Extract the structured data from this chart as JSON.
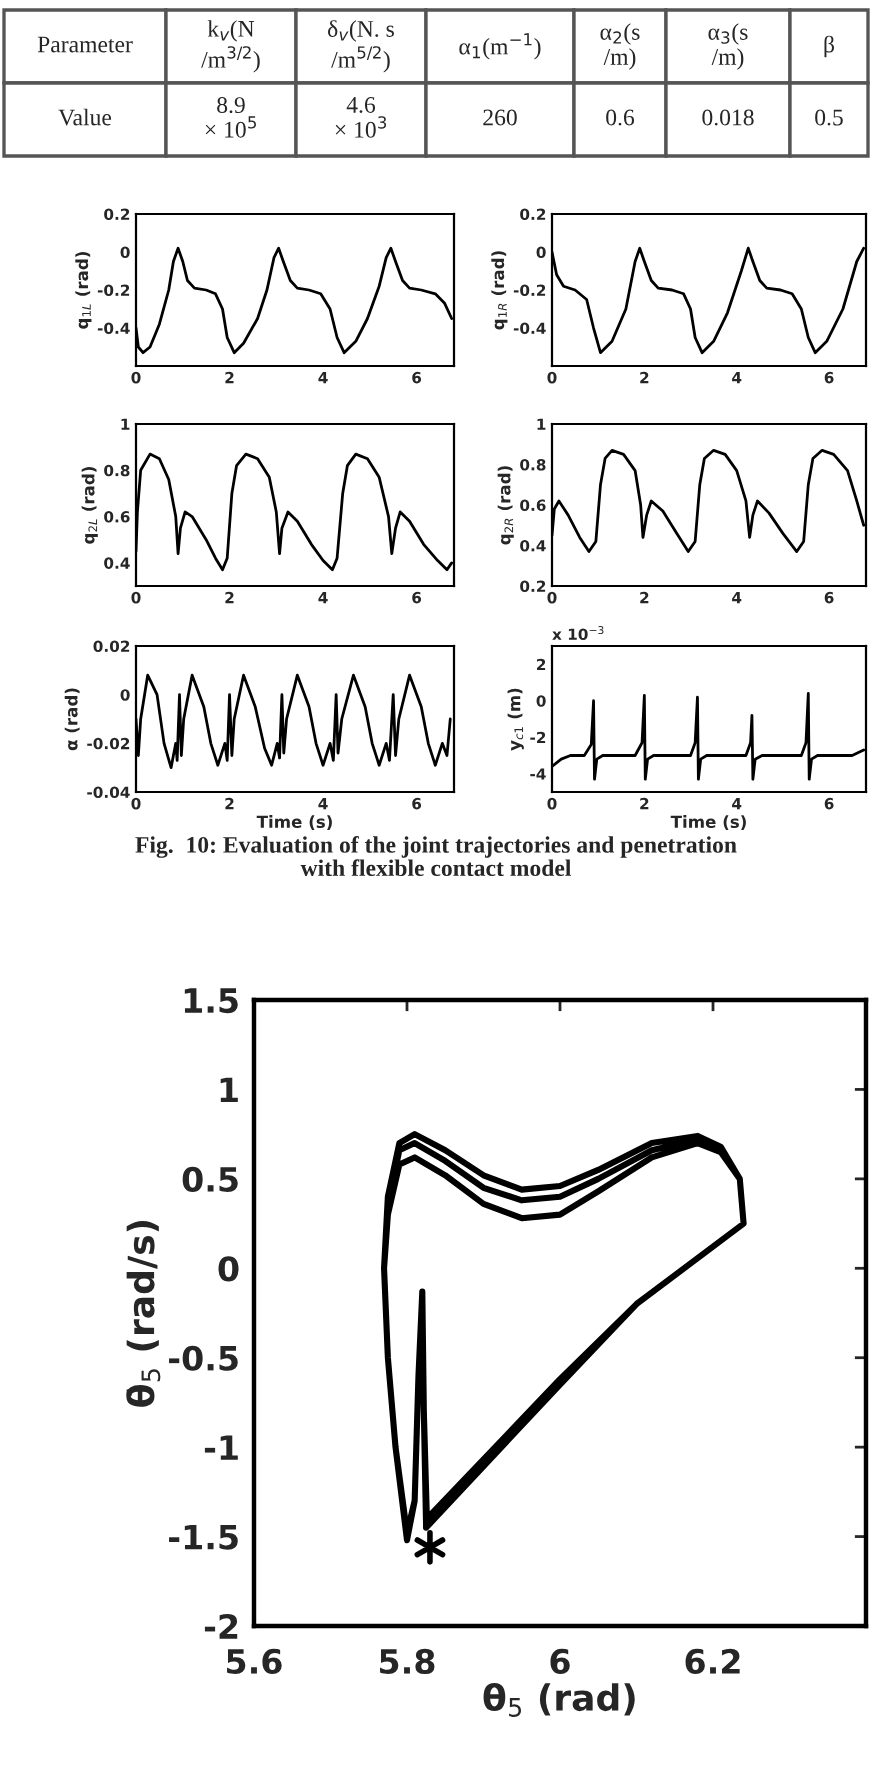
{
  "chart_data": [
    {
      "type": "other",
      "cell_labels": [
        [
          "Parameter",
          "k$_{v}$(N\n/m$^{3/2}$)",
          "δ$_{v}$(N. s\n/m$^{5/2}$)",
          "α$_{1}$(m$^{−1}$)",
          "α$_{2}$(s\n/m)",
          "α$_{3}$(s\n/m)",
          "β"
        ],
        [
          "Value",
          "8.9\n× 10$^{5}$",
          "4.6\n× 10$^{3}$",
          "260",
          "0.6",
          "0.018",
          "0.5"
        ]
      ]
    },
    {
      "type": "line",
      "ylabel": "q$_{1L}$ (rad)",
      "xlim": [
        0,
        6.8
      ],
      "ylim": [
        -0.6,
        0.2
      ],
      "xticks": [
        0,
        2,
        4,
        6
      ],
      "yticks": [
        -0.4,
        -0.2,
        0,
        0.2
      ],
      "series": [
        {
          "color": "#000000",
          "x": [
            0,
            0.05,
            0.15,
            0.3,
            0.5,
            0.7,
            0.8,
            0.9,
            1.0,
            1.1,
            1.25,
            1.5,
            1.7,
            1.85,
            1.95,
            2.1,
            2.3,
            2.6,
            2.8,
            2.95,
            3.05,
            3.15,
            3.3,
            3.45,
            3.7,
            3.95,
            4.15,
            4.3,
            4.45,
            4.7,
            4.95,
            5.2,
            5.35,
            5.45,
            5.55,
            5.7,
            5.85,
            6.1,
            6.4,
            6.6,
            6.75
          ],
          "values": [
            -0.4,
            -0.5,
            -0.53,
            -0.5,
            -0.38,
            -0.2,
            -0.05,
            0.02,
            -0.05,
            -0.15,
            -0.19,
            -0.2,
            -0.22,
            -0.3,
            -0.45,
            -0.53,
            -0.48,
            -0.35,
            -0.2,
            -0.03,
            0.02,
            -0.05,
            -0.15,
            -0.19,
            -0.2,
            -0.22,
            -0.3,
            -0.45,
            -0.53,
            -0.47,
            -0.35,
            -0.18,
            -0.03,
            0.02,
            -0.05,
            -0.15,
            -0.19,
            -0.2,
            -0.22,
            -0.27,
            -0.35
          ]
        }
      ]
    },
    {
      "type": "line",
      "ylabel": "q$_{1R}$ (rad)",
      "xlim": [
        0,
        6.8
      ],
      "ylim": [
        -0.6,
        0.2
      ],
      "xticks": [
        0,
        2,
        4,
        6
      ],
      "yticks": [
        -0.4,
        -0.2,
        0,
        0.2
      ],
      "series": [
        {
          "color": "#000000",
          "x": [
            0,
            0.1,
            0.25,
            0.5,
            0.75,
            0.9,
            1.05,
            1.3,
            1.6,
            1.8,
            1.9,
            2.0,
            2.15,
            2.3,
            2.6,
            2.85,
            3.0,
            3.1,
            3.25,
            3.5,
            3.8,
            4.1,
            4.25,
            4.35,
            4.5,
            4.65,
            4.95,
            5.2,
            5.4,
            5.55,
            5.7,
            5.95,
            6.3,
            6.6,
            6.75
          ],
          "values": [
            0,
            -0.12,
            -0.18,
            -0.2,
            -0.25,
            -0.4,
            -0.53,
            -0.47,
            -0.3,
            -0.05,
            0.02,
            -0.05,
            -0.15,
            -0.19,
            -0.2,
            -0.22,
            -0.3,
            -0.45,
            -0.53,
            -0.47,
            -0.32,
            -0.1,
            0.02,
            -0.05,
            -0.15,
            -0.19,
            -0.2,
            -0.22,
            -0.3,
            -0.45,
            -0.53,
            -0.47,
            -0.3,
            -0.05,
            0.02
          ]
        }
      ]
    },
    {
      "type": "line",
      "ylabel": "q$_{2L}$ (rad)",
      "xlim": [
        0,
        6.8
      ],
      "ylim": [
        0.3,
        1
      ],
      "xticks": [
        0,
        2,
        4,
        6
      ],
      "yticks": [
        0.4,
        0.6,
        0.8,
        1
      ],
      "series": [
        {
          "color": "#000000",
          "x": [
            0,
            0.03,
            0.1,
            0.3,
            0.5,
            0.7,
            0.85,
            0.9,
            0.95,
            1.05,
            1.2,
            1.5,
            1.7,
            1.85,
            1.95,
            2.05,
            2.15,
            2.35,
            2.6,
            2.85,
            3.0,
            3.07,
            3.12,
            3.25,
            3.45,
            3.75,
            4.0,
            4.2,
            4.3,
            4.42,
            4.52,
            4.7,
            4.95,
            5.2,
            5.4,
            5.47,
            5.55,
            5.65,
            5.85,
            6.15,
            6.45,
            6.65,
            6.75
          ],
          "values": [
            0.45,
            0.62,
            0.8,
            0.87,
            0.85,
            0.76,
            0.6,
            0.44,
            0.55,
            0.62,
            0.6,
            0.5,
            0.42,
            0.37,
            0.42,
            0.7,
            0.82,
            0.87,
            0.85,
            0.77,
            0.62,
            0.44,
            0.55,
            0.62,
            0.58,
            0.48,
            0.41,
            0.37,
            0.42,
            0.7,
            0.82,
            0.87,
            0.85,
            0.77,
            0.6,
            0.44,
            0.55,
            0.62,
            0.58,
            0.48,
            0.41,
            0.37,
            0.4
          ]
        }
      ]
    },
    {
      "type": "line",
      "ylabel": "q$_{2R}$ (rad)",
      "xlim": [
        0,
        6.8
      ],
      "ylim": [
        0.2,
        1
      ],
      "xticks": [
        0,
        2,
        4,
        6
      ],
      "yticks": [
        0.2,
        0.4,
        0.6,
        0.8,
        1
      ],
      "series": [
        {
          "color": "#000000",
          "x": [
            0,
            0.05,
            0.15,
            0.35,
            0.6,
            0.8,
            0.95,
            1.05,
            1.15,
            1.3,
            1.55,
            1.8,
            1.92,
            1.97,
            2.05,
            2.15,
            2.4,
            2.7,
            2.95,
            3.1,
            3.2,
            3.3,
            3.5,
            3.75,
            4.0,
            4.2,
            4.28,
            4.35,
            4.45,
            4.7,
            5.0,
            5.3,
            5.45,
            5.55,
            5.65,
            5.85,
            6.1,
            6.4,
            6.6,
            6.75
          ],
          "values": [
            0.45,
            0.58,
            0.62,
            0.55,
            0.44,
            0.37,
            0.42,
            0.7,
            0.83,
            0.87,
            0.85,
            0.77,
            0.6,
            0.44,
            0.55,
            0.62,
            0.57,
            0.46,
            0.37,
            0.42,
            0.7,
            0.83,
            0.87,
            0.85,
            0.77,
            0.62,
            0.44,
            0.55,
            0.62,
            0.56,
            0.46,
            0.37,
            0.42,
            0.7,
            0.83,
            0.87,
            0.85,
            0.77,
            0.62,
            0.5
          ]
        }
      ]
    },
    {
      "type": "line",
      "ylabel": "α (rad)",
      "xlabel": "Time (s)",
      "xlim": [
        0,
        6.8
      ],
      "ylim": [
        -0.04,
        0.02
      ],
      "xticks": [
        0,
        2,
        4,
        6
      ],
      "yticks": [
        -0.04,
        -0.02,
        0,
        0.02
      ],
      "series": [
        {
          "color": "#000000",
          "x": [
            0,
            0.05,
            0.1,
            0.25,
            0.45,
            0.6,
            0.75,
            0.85,
            0.88,
            0.93,
            0.97,
            1.02,
            1.2,
            1.45,
            1.6,
            1.75,
            1.9,
            1.95,
            2.0,
            2.05,
            2.1,
            2.3,
            2.55,
            2.75,
            2.9,
            3.02,
            3.07,
            3.12,
            3.16,
            3.22,
            3.45,
            3.7,
            3.85,
            4.0,
            4.15,
            4.22,
            4.28,
            4.32,
            4.4,
            4.65,
            4.9,
            5.05,
            5.2,
            5.35,
            5.42,
            5.5,
            5.55,
            5.62,
            5.85,
            6.1,
            6.25,
            6.4,
            6.55,
            6.65,
            6.72
          ],
          "values": [
            -0.01,
            -0.025,
            -0.01,
            0.008,
            0.0,
            -0.02,
            -0.03,
            -0.02,
            -0.027,
            0.0,
            -0.025,
            -0.01,
            0.008,
            -0.005,
            -0.02,
            -0.029,
            -0.02,
            -0.027,
            0.0,
            -0.025,
            -0.01,
            0.008,
            -0.005,
            -0.022,
            -0.029,
            -0.02,
            -0.026,
            0.0,
            -0.024,
            -0.01,
            0.008,
            -0.005,
            -0.02,
            -0.029,
            -0.02,
            -0.027,
            0.0,
            -0.024,
            -0.01,
            0.008,
            -0.005,
            -0.02,
            -0.029,
            -0.02,
            -0.027,
            0.0,
            -0.025,
            -0.01,
            0.008,
            -0.005,
            -0.02,
            -0.029,
            -0.02,
            -0.025,
            -0.01
          ]
        }
      ]
    },
    {
      "type": "line",
      "ylabel": "y$_{c1}$ (m)",
      "xlabel": "Time (s)",
      "xlim": [
        0,
        6.8
      ],
      "ylim": [
        -5,
        3
      ],
      "xticks": [
        0,
        2,
        4,
        6
      ],
      "yticks": [
        -4,
        -2,
        0,
        2
      ],
      "annotations": [
        "x 10$^{−3}$",
        "Fig.  10: Evaluation of the joint trajectories and penetration\nwith flexible contact model"
      ],
      "series": [
        {
          "color": "#000000",
          "x": [
            0,
            0.2,
            0.4,
            0.7,
            0.85,
            0.9,
            0.92,
            0.97,
            1.1,
            1.8,
            1.95,
            2.0,
            2.02,
            2.07,
            2.2,
            3.0,
            3.1,
            3.15,
            3.17,
            3.22,
            3.35,
            4.2,
            4.3,
            4.33,
            4.35,
            4.4,
            4.55,
            5.4,
            5.5,
            5.55,
            5.57,
            5.62,
            5.75,
            6.5,
            6.75
          ],
          "values": [
            -3.6,
            -3.2,
            -3.0,
            -3.0,
            -2.4,
            0.0,
            -4.3,
            -3.2,
            -3.0,
            -3.0,
            -2.3,
            0.3,
            -4.3,
            -3.2,
            -3.0,
            -3.0,
            -2.3,
            0.2,
            -4.3,
            -3.2,
            -3.0,
            -3.0,
            -2.3,
            -0.8,
            -4.3,
            -3.2,
            -3.0,
            -3.0,
            -2.3,
            0.4,
            -4.3,
            -3.2,
            -3.0,
            -3.0,
            -2.7
          ]
        }
      ]
    },
    {
      "type": "line",
      "xlabel": "θ$_{5}$ (rad)",
      "ylabel": "θ̇$_{5}$ (rad/s)",
      "xlim": [
        5.6,
        6.4
      ],
      "ylim": [
        -2,
        1.5
      ],
      "xticks": [
        5.6,
        5.8,
        6,
        6.2
      ],
      "yticks": [
        -2,
        -1.5,
        -1,
        -0.5,
        0,
        0.5,
        1,
        1.5
      ],
      "series": [
        {
          "color": "#000000",
          "x": [
            5.825,
            6.0,
            6.1,
            6.24,
            6.235,
            6.21,
            6.18,
            6.12,
            6.05,
            6.0,
            5.95,
            5.9,
            5.85,
            5.81,
            5.79,
            5.775,
            5.77,
            5.775,
            5.785,
            5.8,
            5.81,
            5.815,
            5.82,
            5.822,
            5.825,
            6.0,
            6.1,
            6.24,
            6.235,
            6.21,
            6.18,
            6.12,
            6.05,
            6.0,
            5.95,
            5.9,
            5.85,
            5.81,
            5.79,
            5.775,
            5.77,
            5.775,
            5.785,
            5.8,
            5.81,
            5.815,
            5.82,
            5.822,
            5.826,
            6.0,
            6.1,
            6.24,
            6.235,
            6.21,
            6.18,
            6.12,
            6.05,
            6.0,
            5.95,
            5.9,
            5.85,
            5.81,
            5.79,
            5.775,
            5.77,
            5.775,
            5.785,
            5.8,
            5.81,
            5.815,
            5.82,
            5.822,
            5.826
          ],
          "values": [
            -1.45,
            -0.65,
            -0.2,
            0.25,
            0.5,
            0.65,
            0.7,
            0.62,
            0.43,
            0.3,
            0.28,
            0.36,
            0.52,
            0.62,
            0.58,
            0.3,
            0.0,
            -0.5,
            -1.0,
            -1.52,
            -1.3,
            -0.6,
            -0.13,
            -0.8,
            -1.45,
            -0.65,
            -0.2,
            0.25,
            0.5,
            0.67,
            0.72,
            0.66,
            0.5,
            0.4,
            0.38,
            0.45,
            0.6,
            0.7,
            0.66,
            0.35,
            0.0,
            -0.5,
            -1.0,
            -1.5,
            -1.3,
            -0.6,
            -0.13,
            -0.8,
            -1.4,
            -0.62,
            -0.2,
            0.25,
            0.5,
            0.68,
            0.74,
            0.7,
            0.55,
            0.46,
            0.44,
            0.52,
            0.66,
            0.75,
            0.7,
            0.4,
            0.0,
            -0.5,
            -1.0,
            -1.48,
            -1.3,
            -0.6,
            -0.13,
            -0.8,
            -1.42
          ]
        },
        {
          "type": "scatter",
          "color": "#000000",
          "marker": "cross",
          "x": [
            5.83
          ],
          "values": [
            -1.56
          ]
        }
      ]
    }
  ]
}
